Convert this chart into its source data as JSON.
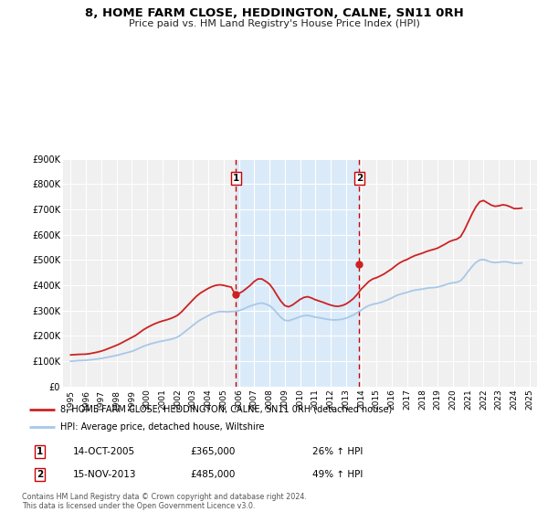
{
  "title": "8, HOME FARM CLOSE, HEDDINGTON, CALNE, SN11 0RH",
  "subtitle": "Price paid vs. HM Land Registry's House Price Index (HPI)",
  "title_fontsize": 9.5,
  "subtitle_fontsize": 8.0,
  "background_color": "#ffffff",
  "plot_bg_color": "#f0f0f0",
  "grid_color": "#ffffff",
  "hpi_line_color": "#a8c8e8",
  "price_line_color": "#cc2222",
  "shade_color": "#daeaf8",
  "vline_color": "#cc0000",
  "marker_color": "#cc2222",
  "ylim": [
    0,
    900000
  ],
  "yticks": [
    0,
    100000,
    200000,
    300000,
    400000,
    500000,
    600000,
    700000,
    800000,
    900000
  ],
  "ytick_labels": [
    "£0",
    "£100K",
    "£200K",
    "£300K",
    "£400K",
    "£500K",
    "£600K",
    "£700K",
    "£800K",
    "£900K"
  ],
  "xmin": 1994.5,
  "xmax": 2025.5,
  "xticks": [
    1995,
    1996,
    1997,
    1998,
    1999,
    2000,
    2001,
    2002,
    2003,
    2004,
    2005,
    2006,
    2007,
    2008,
    2009,
    2010,
    2011,
    2012,
    2013,
    2014,
    2015,
    2016,
    2017,
    2018,
    2019,
    2020,
    2021,
    2022,
    2023,
    2024,
    2025
  ],
  "sale1_x": 2005.79,
  "sale1_y": 365000,
  "sale2_x": 2013.88,
  "sale2_y": 485000,
  "legend_entry1": "8, HOME FARM CLOSE, HEDDINGTON, CALNE, SN11 0RH (detached house)",
  "legend_entry2": "HPI: Average price, detached house, Wiltshire",
  "annotation1_date": "14-OCT-2005",
  "annotation1_price": "£365,000",
  "annotation1_hpi": "26% ↑ HPI",
  "annotation2_date": "15-NOV-2013",
  "annotation2_price": "£485,000",
  "annotation2_hpi": "49% ↑ HPI",
  "footnote1": "Contains HM Land Registry data © Crown copyright and database right 2024.",
  "footnote2": "This data is licensed under the Open Government Licence v3.0.",
  "hpi_data_x": [
    1995.0,
    1995.25,
    1995.5,
    1995.75,
    1996.0,
    1996.25,
    1996.5,
    1996.75,
    1997.0,
    1997.25,
    1997.5,
    1997.75,
    1998.0,
    1998.25,
    1998.5,
    1998.75,
    1999.0,
    1999.25,
    1999.5,
    1999.75,
    2000.0,
    2000.25,
    2000.5,
    2000.75,
    2001.0,
    2001.25,
    2001.5,
    2001.75,
    2002.0,
    2002.25,
    2002.5,
    2002.75,
    2003.0,
    2003.25,
    2003.5,
    2003.75,
    2004.0,
    2004.25,
    2004.5,
    2004.75,
    2005.0,
    2005.25,
    2005.5,
    2005.75,
    2006.0,
    2006.25,
    2006.5,
    2006.75,
    2007.0,
    2007.25,
    2007.5,
    2007.75,
    2008.0,
    2008.25,
    2008.5,
    2008.75,
    2009.0,
    2009.25,
    2009.5,
    2009.75,
    2010.0,
    2010.25,
    2010.5,
    2010.75,
    2011.0,
    2011.25,
    2011.5,
    2011.75,
    2012.0,
    2012.25,
    2012.5,
    2012.75,
    2013.0,
    2013.25,
    2013.5,
    2013.75,
    2014.0,
    2014.25,
    2014.5,
    2014.75,
    2015.0,
    2015.25,
    2015.5,
    2015.75,
    2016.0,
    2016.25,
    2016.5,
    2016.75,
    2017.0,
    2017.25,
    2017.5,
    2017.75,
    2018.0,
    2018.25,
    2018.5,
    2018.75,
    2019.0,
    2019.25,
    2019.5,
    2019.75,
    2020.0,
    2020.25,
    2020.5,
    2020.75,
    2021.0,
    2021.25,
    2021.5,
    2021.75,
    2022.0,
    2022.25,
    2022.5,
    2022.75,
    2023.0,
    2023.25,
    2023.5,
    2023.75,
    2024.0,
    2024.25,
    2024.5
  ],
  "hpi_data_y": [
    100000,
    101000,
    102500,
    103000,
    104000,
    105500,
    107000,
    109000,
    111000,
    114000,
    117000,
    120000,
    123000,
    127000,
    131000,
    135000,
    139000,
    145000,
    152000,
    159000,
    164000,
    169000,
    173000,
    177000,
    180000,
    183000,
    186000,
    190000,
    196000,
    206000,
    218000,
    230000,
    242000,
    254000,
    264000,
    272000,
    280000,
    288000,
    293000,
    296000,
    296000,
    295000,
    296000,
    297000,
    300000,
    305000,
    312000,
    318000,
    323000,
    328000,
    330000,
    326000,
    320000,
    307000,
    290000,
    273000,
    262000,
    260000,
    265000,
    270000,
    276000,
    280000,
    281000,
    278000,
    274000,
    272000,
    269000,
    266000,
    264000,
    263000,
    264000,
    266000,
    270000,
    276000,
    283000,
    292000,
    302000,
    312000,
    320000,
    325000,
    328000,
    332000,
    337000,
    343000,
    350000,
    358000,
    364000,
    368000,
    372000,
    377000,
    381000,
    383000,
    385000,
    388000,
    390000,
    391000,
    393000,
    397000,
    402000,
    407000,
    410000,
    412000,
    418000,
    435000,
    455000,
    474000,
    490000,
    500000,
    502000,
    497000,
    492000,
    490000,
    491000,
    493000,
    493000,
    490000,
    487000,
    487000,
    488000
  ],
  "price_data_x": [
    1995.0,
    1995.25,
    1995.5,
    1995.75,
    1996.0,
    1996.25,
    1996.5,
    1996.75,
    1997.0,
    1997.25,
    1997.5,
    1997.75,
    1998.0,
    1998.25,
    1998.5,
    1998.75,
    1999.0,
    1999.25,
    1999.5,
    1999.75,
    2000.0,
    2000.25,
    2000.5,
    2000.75,
    2001.0,
    2001.25,
    2001.5,
    2001.75,
    2002.0,
    2002.25,
    2002.5,
    2002.75,
    2003.0,
    2003.25,
    2003.5,
    2003.75,
    2004.0,
    2004.25,
    2004.5,
    2004.75,
    2005.0,
    2005.25,
    2005.5,
    2005.75,
    2006.0,
    2006.25,
    2006.5,
    2006.75,
    2007.0,
    2007.25,
    2007.5,
    2007.75,
    2008.0,
    2008.25,
    2008.5,
    2008.75,
    2009.0,
    2009.25,
    2009.5,
    2009.75,
    2010.0,
    2010.25,
    2010.5,
    2010.75,
    2011.0,
    2011.25,
    2011.5,
    2011.75,
    2012.0,
    2012.25,
    2012.5,
    2012.75,
    2013.0,
    2013.25,
    2013.5,
    2013.75,
    2014.0,
    2014.25,
    2014.5,
    2014.75,
    2015.0,
    2015.25,
    2015.5,
    2015.75,
    2016.0,
    2016.25,
    2016.5,
    2016.75,
    2017.0,
    2017.25,
    2017.5,
    2017.75,
    2018.0,
    2018.25,
    2018.5,
    2018.75,
    2019.0,
    2019.25,
    2019.5,
    2019.75,
    2020.0,
    2020.25,
    2020.5,
    2020.75,
    2021.0,
    2021.25,
    2021.5,
    2021.75,
    2022.0,
    2022.25,
    2022.5,
    2022.75,
    2023.0,
    2023.25,
    2023.5,
    2023.75,
    2024.0,
    2024.25,
    2024.5
  ],
  "price_data_y": [
    125000,
    126000,
    127000,
    127500,
    128000,
    130000,
    133000,
    136000,
    140000,
    145000,
    151000,
    157000,
    163000,
    170000,
    178000,
    186000,
    194000,
    202000,
    213000,
    224000,
    233000,
    241000,
    248000,
    254000,
    259000,
    263000,
    268000,
    274000,
    282000,
    295000,
    311000,
    327000,
    343000,
    358000,
    370000,
    379000,
    388000,
    395000,
    400000,
    402000,
    400000,
    396000,
    393000,
    365000,
    368000,
    376000,
    388000,
    400000,
    415000,
    425000,
    425000,
    416000,
    405000,
    385000,
    360000,
    337000,
    320000,
    315000,
    322000,
    333000,
    344000,
    352000,
    355000,
    350000,
    343000,
    338000,
    333000,
    327000,
    322000,
    318000,
    317000,
    320000,
    326000,
    336000,
    348000,
    365000,
    385000,
    400000,
    415000,
    425000,
    430000,
    437000,
    445000,
    455000,
    465000,
    477000,
    488000,
    496000,
    502000,
    510000,
    517000,
    522000,
    527000,
    533000,
    538000,
    542000,
    547000,
    555000,
    563000,
    572000,
    578000,
    582000,
    592000,
    618000,
    650000,
    682000,
    710000,
    730000,
    735000,
    726000,
    717000,
    712000,
    714000,
    718000,
    716000,
    710000,
    703000,
    703000,
    705000
  ]
}
